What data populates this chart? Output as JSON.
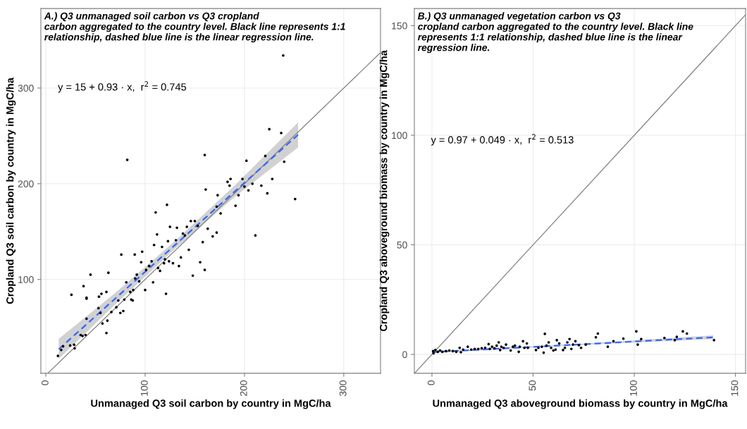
{
  "chart_data": [
    {
      "type": "scatter",
      "title": "A.) Q3 unmanaged soil carbon vs Q3 cropland\ncarbon aggregated to the country level. Black line represents 1:1\nrelationship, dashed blue line is the linear regression line.",
      "xlabel": "Unmanaged Q3 soil carbon by country in MgC/ha",
      "ylabel": "Cropland Q3 soil carbon by country in MgC/ha",
      "annotations": [
        "y = 15 + 0.93 · x,  r$^{2}$ = 0.745"
      ],
      "xlim": [
        -5,
        337
      ],
      "ylim": [
        2,
        383
      ],
      "xticks": [
        0,
        100,
        200,
        300
      ],
      "yticks": [
        100,
        200,
        300
      ],
      "grid": true,
      "series": [
        {
          "type": "line",
          "color": "#7f7f7f",
          "line_style": "solid",
          "x": [
            2,
            337
          ],
          "values": [
            2,
            337
          ]
        },
        {
          "type": "line",
          "color": "#3366ff",
          "line_style": "dashed",
          "x": [
            13,
            70,
            130,
            190,
            254
          ],
          "values": [
            27.1,
            80.1,
            135.9,
            191.7,
            251.2
          ],
          "lower": [
            17,
            74,
            132,
            186,
            238
          ],
          "upper": [
            38,
            86,
            140,
            198,
            264
          ]
        },
        {
          "type": "scatter",
          "color": "#000000",
          "marker": "circle",
          "x": [
            12.2,
            15.5,
            17.4,
            24.5,
            25.8,
            28.5,
            29,
            35,
            37,
            38,
            41,
            41,
            40,
            45,
            41,
            53.5,
            56,
            61,
            63,
            53,
            55,
            57,
            61,
            62,
            66,
            71,
            73,
            75,
            76,
            78,
            79,
            82,
            81,
            85,
            86,
            88,
            89.5,
            87.5,
            90,
            91.6,
            94,
            96,
            97,
            100,
            101,
            104,
            106.5,
            108,
            109,
            110.6,
            113,
            115,
            112,
            117,
            119,
            120,
            121,
            122,
            123,
            124,
            125,
            128,
            131,
            132,
            134,
            136,
            138,
            140,
            142,
            144,
            146,
            148,
            150,
            153,
            155.4,
            158,
            160,
            160,
            161,
            163,
            168,
            172,
            172,
            173,
            176,
            183,
            185,
            186,
            191,
            194,
            198,
            200,
            202,
            204,
            208,
            211,
            217,
            221,
            223,
            225,
            228,
            237,
            240,
            251,
            239
          ],
          "values": [
            20.2,
            26.4,
            30.1,
            31,
            84,
            31.8,
            28,
            42,
            41,
            93,
            81,
            80,
            42,
            105,
            59,
            82,
            85,
            87,
            107,
            70,
            65,
            54,
            44,
            57,
            66,
            71,
            78,
            65,
            126,
            67,
            79,
            225,
            97,
            87,
            79,
            89,
            126,
            78,
            101,
            105,
            98,
            118,
            129,
            89,
            110,
            114,
            119,
            97,
            136,
            170,
            112,
            109,
            147,
            134,
            117,
            121,
            85,
            178,
            140,
            119,
            155,
            117,
            141,
            154,
            114,
            123,
            148,
            146,
            155,
            131,
            161,
            104,
            161,
            156,
            118,
            139,
            230,
            110,
            194,
            153,
            145,
            149,
            176,
            188,
            169,
            202,
            198,
            205,
            177,
            188,
            205,
            197,
            224,
            193,
            200,
            146,
            198,
            229,
            190,
            257,
            205,
            253,
            223,
            184,
            334
          ]
        }
      ]
    },
    {
      "type": "scatter",
      "title": "B.) Q3 unmanaged vegetation carbon vs Q3\ncropland carbon aggregated to the country level. Black line\nrepresents 1:1 relationship, dashed blue line is the linear\nregression line.",
      "xlabel": "Unmanaged Q3 aboveground biomass by country in MgC/ha",
      "ylabel": "Cropland Q3 aboveground biomass by country in MgC/ha",
      "annotations": [
        "y = 0.97 + 0.049 · x,  r$^{2}$ = 0.513"
      ],
      "xlim": [
        -8.7,
        155
      ],
      "ylim": [
        -8.6,
        157.8
      ],
      "xticks": [
        0,
        50,
        100,
        150
      ],
      "yticks": [
        0,
        50,
        100,
        150
      ],
      "grid": true,
      "series": [
        {
          "type": "line",
          "color": "#7f7f7f",
          "line_style": "solid",
          "x": [
            -8.6,
            155
          ],
          "values": [
            -8.6,
            155
          ]
        },
        {
          "type": "line",
          "color": "#3366ff",
          "line_style": "dashed",
          "x": [
            0,
            70,
            139
          ],
          "values": [
            1.0,
            4.4,
            7.8
          ],
          "lower": [
            0.5,
            4.1,
            7.0
          ],
          "upper": [
            1.5,
            4.7,
            8.7
          ]
        },
        {
          "type": "scatter",
          "color": "#000000",
          "marker": "circle",
          "x": [
            0.6,
            0.8,
            1.7,
            2.9,
            4,
            5.1,
            6.9,
            8.6,
            10.3,
            12,
            13.7,
            14.3,
            15.4,
            17.7,
            19.4,
            21.1,
            22.9,
            24.6,
            26.3,
            28,
            28.6,
            29.7,
            30.9,
            32,
            33,
            33.7,
            34.3,
            35.4,
            36.6,
            38.9,
            40,
            41,
            42.9,
            43.4,
            45,
            45.7,
            46.9,
            47.4,
            51.4,
            52.6,
            54.3,
            55.2,
            55.8,
            56.6,
            57.7,
            58.9,
            60,
            61.1,
            61.7,
            62.9,
            64.8,
            65.7,
            66.9,
            68,
            68.9,
            69.7,
            70.9,
            72.6,
            73.7,
            76,
            81,
            82,
            86.9,
            89.7,
            94.6,
            101,
            101.7,
            103.4,
            114.9,
            120,
            121,
            124,
            126,
            139.4
          ],
          "values": [
            1.5,
            0.5,
            2,
            1.2,
            1.8,
            1.2,
            1.5,
            1.8,
            1.5,
            1.2,
            3,
            1,
            2.2,
            3.5,
            2.2,
            2.5,
            2.5,
            2.8,
            3,
            4.7,
            2.5,
            3.5,
            2.8,
            4,
            5.5,
            2,
            3.5,
            3,
            4.5,
            1.8,
            3.5,
            4,
            1.2,
            3.5,
            6,
            3,
            5,
            3,
            2,
            3,
            3.5,
            0.8,
            9.4,
            4,
            5.5,
            3,
            1.8,
            2.2,
            6.5,
            5,
            2,
            3,
            5.5,
            7,
            2.5,
            4.5,
            6,
            4.2,
            3,
            4.5,
            7.8,
            9.5,
            3.5,
            6,
            7.2,
            10.5,
            4.5,
            7,
            7.5,
            6.5,
            8,
            10.5,
            9.5,
            6.5
          ]
        }
      ]
    }
  ]
}
